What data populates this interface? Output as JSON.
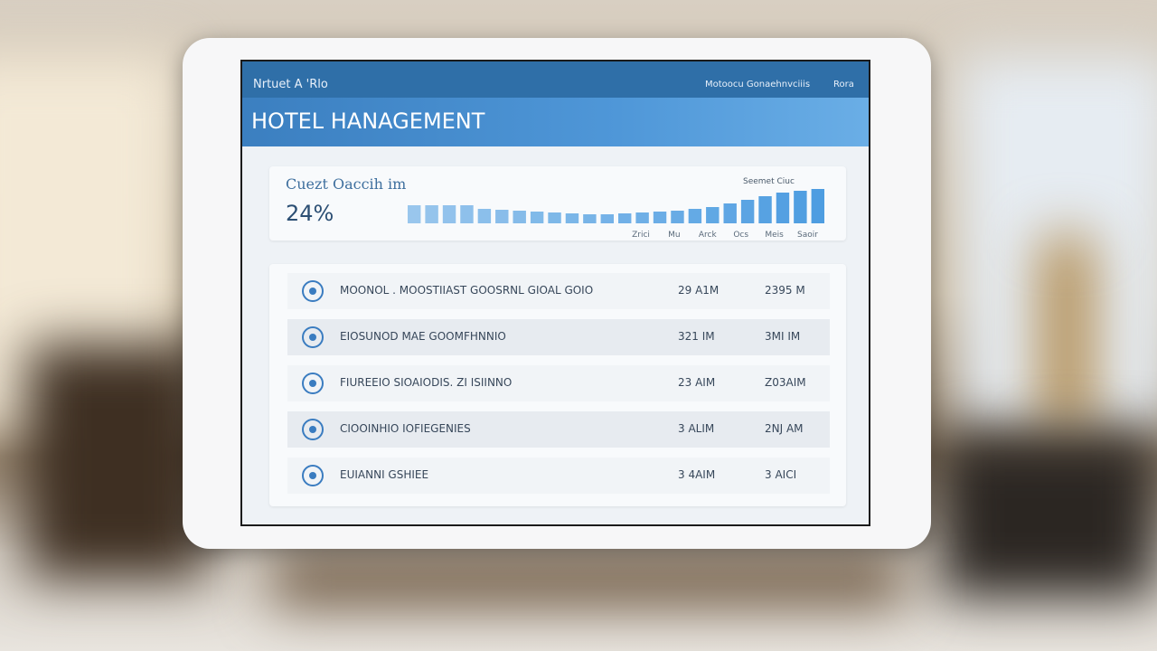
{
  "header": {
    "top_left": "Nrtuet A 'Rlo",
    "top_right": [
      "Motoocu Gonaehnvciiis",
      "Rora"
    ],
    "title": "HOTEL HANAGEMENT"
  },
  "occupancy": {
    "title": "Cuezt Oaccih im",
    "value": "24%",
    "legend": "Seemet Ciuc",
    "bars": [
      20,
      20,
      20,
      20,
      16,
      15,
      14,
      13,
      12,
      11,
      10,
      10,
      11,
      12,
      13,
      14,
      16,
      18,
      22,
      26,
      30,
      34,
      36,
      38
    ],
    "bar_color": "#4a9be0",
    "labels": [
      "Zrici",
      "Mu",
      "Arck",
      "Ocs",
      "Meis",
      "Saoir"
    ]
  },
  "table": {
    "rows": [
      [
        "MOONOL . MOOSTIIAST  GOOSRNL GIOAL GOIO",
        "29 A1M",
        "2395 M"
      ],
      [
        "EIOSUNOD  MAE  GOOMFHNNIO",
        "321 IM",
        "3MI IM"
      ],
      [
        "FIUREEIO SIOAIODIS. ZI ISIINNO",
        "23 AIM",
        "Z03AIM"
      ],
      [
        "CIOOINHIO IOFIEGENIES",
        "3 ALIM",
        "2NJ AM"
      ],
      [
        "EUIANNI GSHIEE",
        "3 4AIM",
        "3 AICI"
      ]
    ]
  }
}
